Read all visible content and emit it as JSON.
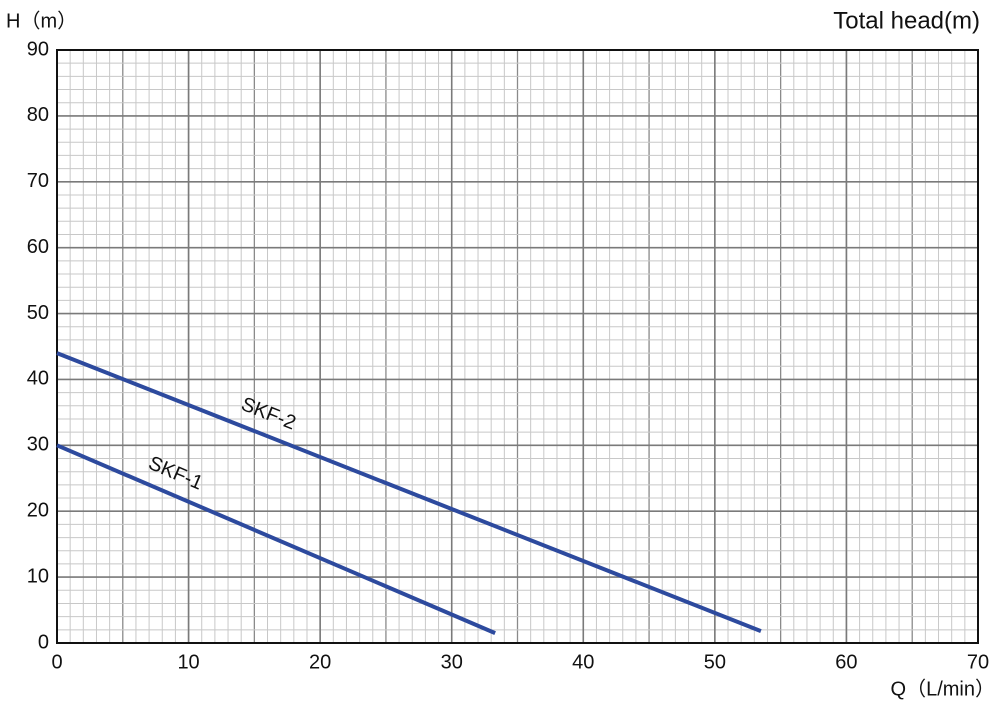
{
  "chart_data": {
    "type": "line",
    "title": "Total head(m)",
    "y_label": "H（m）",
    "x_label": "Q（L/min）",
    "xlim": [
      0,
      70
    ],
    "xticks": [
      0,
      10,
      20,
      30,
      40,
      50,
      60,
      70
    ],
    "ylim": [
      0,
      90
    ],
    "yticks": [
      0,
      10,
      20,
      30,
      40,
      50,
      60,
      70,
      80,
      90
    ],
    "grid": true,
    "series": [
      {
        "name": "SKF-1",
        "color": "#2d4a9e",
        "x": [
          0,
          33.3
        ],
        "values": [
          30,
          1.5
        ]
      },
      {
        "name": "SKF-2",
        "color": "#2d4a9e",
        "x": [
          0,
          53.5
        ],
        "values": [
          44,
          1.8
        ]
      }
    ]
  }
}
